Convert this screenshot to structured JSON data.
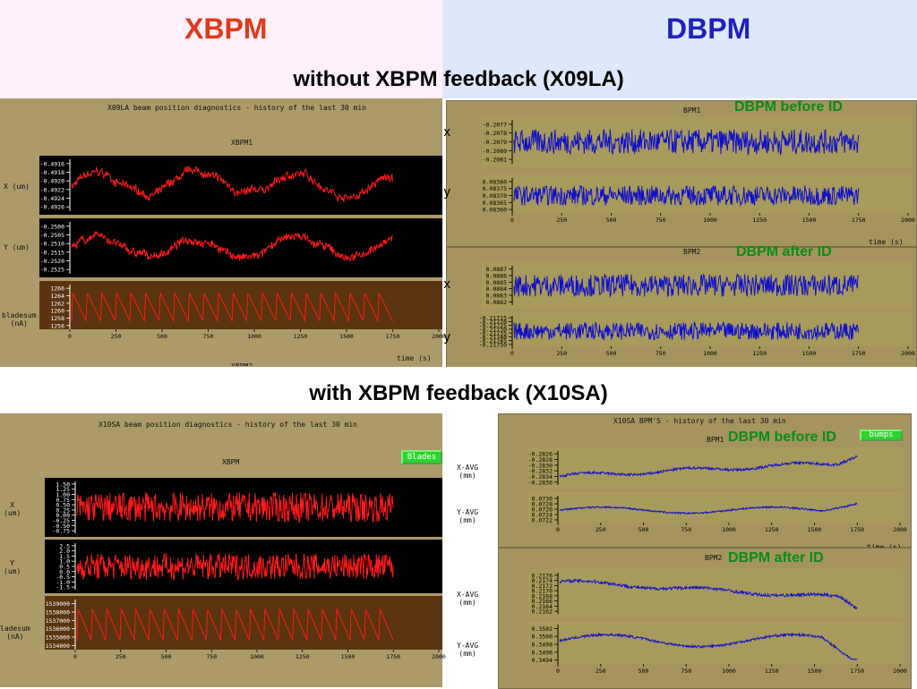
{
  "header": {
    "left_title": "XBPM",
    "right_title": "DBPM",
    "left_color": "#e03a1a",
    "right_color": "#2020c0"
  },
  "section1": {
    "title": "without XBPM feedback (X09LA)",
    "xbpm_title": "X09LA beam position diagnostics - history of the last 30 min",
    "xbpm_name": "XBPM1",
    "footer_cut": "XBPM2",
    "dbpm_before_label": "DBPM before ID",
    "dbpm_after_label": "DBPM after ID",
    "bpm1_name": "BPM1",
    "bpm2_name": "BPM2",
    "x_letter": "x",
    "y_letter": "y"
  },
  "section2": {
    "title": "with XBPM feedback (X10SA)",
    "xbpm_title": "X10SA beam position diagnostics - history of the last 30 min",
    "xbpm_name": "XBPM",
    "blades_button": "Blades",
    "dbpm_title": "X10SA   BPM'S - history of the last 30 min",
    "bumps_button": "bumps",
    "dbpm_before_label": "DBPM before ID",
    "dbpm_after_label": "DBPM after ID",
    "bpm1_name": "BPM1",
    "bpm2_name": "BPM2"
  },
  "colors": {
    "xbpm_trace": "#ff1a1a",
    "dbpm_trace": "#1010c8",
    "plot_bg_dark": "#000000",
    "plot_bg_brown": "#5a3410",
    "plot_bg_olive": "#a89a5c"
  },
  "chart_data": [
    {
      "id": "s1_xbpm_x",
      "type": "line",
      "xlabel": "",
      "ylabel": "X (um)",
      "xlim": [
        0,
        2000
      ],
      "ylim": [
        -0.4927,
        -0.4914
      ],
      "yticks": [
        "-0.4916",
        "-0.4918",
        "-0.4920",
        "-0.4922",
        "-0.4924",
        "-0.4926"
      ],
      "series": [
        {
          "x_end": 1750,
          "shape": "noisy-wander",
          "values_range": [
            -0.4925,
            -0.4916
          ]
        }
      ]
    },
    {
      "id": "s1_xbpm_y",
      "type": "line",
      "ylabel": "Y (um)",
      "xlim": [
        0,
        2000
      ],
      "ylim": [
        -0.2527,
        -0.2497
      ],
      "yticks": [
        "-0.2500",
        "-0.2505",
        "-0.2510",
        "-0.2515",
        "-0.2520",
        "-0.2525"
      ],
      "series": [
        {
          "x_end": 1750,
          "shape": "noisy-wander",
          "values_range": [
            -0.2522,
            -0.2503
          ]
        }
      ]
    },
    {
      "id": "s1_xbpm_blade",
      "type": "line",
      "ylabel": "bladesum (nA)",
      "xlabel": "time (s)",
      "xlim": [
        0,
        2000
      ],
      "ylim": [
        1255,
        1267
      ],
      "yticks": [
        "1266",
        "1264",
        "1262",
        "1260",
        "1258",
        "1256"
      ],
      "xticks": [
        "0",
        "250",
        "500",
        "750",
        "1000",
        "1250",
        "1500",
        "1750",
        "2000"
      ],
      "series": [
        {
          "x_end": 1750,
          "shape": "sawtooth",
          "teeth": 22,
          "values_range": [
            1256.5,
            1265.5
          ]
        }
      ]
    },
    {
      "id": "s1_bpm1_x",
      "type": "line",
      "ylabel": "x",
      "xlim": [
        0,
        2000
      ],
      "yticks": [
        "-0.2077",
        "-0.2078",
        "-0.2079",
        "-0.2080",
        "-0.2081"
      ],
      "series": [
        {
          "x_end": 1750,
          "shape": "noise",
          "values_range": [
            -0.208,
            -0.2078
          ]
        }
      ]
    },
    {
      "id": "s1_bpm1_y",
      "type": "line",
      "ylabel": "y",
      "xlabel": "time (s)",
      "xlim": [
        0,
        2000
      ],
      "yticks": [
        "0.08380",
        "0.08375",
        "0.08370",
        "0.08365",
        "0.08360"
      ],
      "xticks": [
        "0",
        "250",
        "500",
        "750",
        "1000",
        "1250",
        "1500",
        "1750",
        "2000"
      ],
      "series": [
        {
          "x_end": 1750,
          "shape": "noise",
          "values_range": [
            0.08365,
            0.08378
          ]
        }
      ]
    },
    {
      "id": "s1_bpm2_x",
      "type": "line",
      "ylabel": "x",
      "xlim": [
        0,
        2000
      ],
      "yticks": [
        "0.0887",
        "0.0886",
        "0.0885",
        "0.0884",
        "0.0883",
        "0.0882"
      ],
      "series": [
        {
          "x_end": 1750,
          "shape": "noise",
          "values_range": [
            0.0883,
            0.0886
          ]
        }
      ]
    },
    {
      "id": "s1_bpm2_y",
      "type": "line",
      "ylabel": "y",
      "xlim": [
        0,
        2000
      ],
      "yticks": [
        "-0.21715",
        "-0.21720",
        "-0.21725",
        "-0.21730",
        "-0.21735",
        "-0.21740",
        "-0.21745",
        "-0.21750"
      ],
      "xticks": [
        "0",
        "250",
        "500",
        "750",
        "1000",
        "1250",
        "1500",
        "1750",
        "2000"
      ],
      "series": [
        {
          "x_end": 1750,
          "shape": "noise",
          "values_range": [
            -0.2174,
            -0.21725
          ]
        }
      ]
    },
    {
      "id": "s2_xbpm_x",
      "type": "line",
      "ylabel": "X (um)",
      "xlim": [
        0,
        2000
      ],
      "yticks": [
        "1.50",
        "1.25",
        "1.00",
        "0.75",
        "0.50",
        "0.25",
        "0.00",
        "-0.25",
        "-0.50",
        "-0.75"
      ],
      "series": [
        {
          "x_end": 1750,
          "shape": "noise",
          "values_range": [
            -0.5,
            1.25
          ]
        }
      ]
    },
    {
      "id": "s2_xbpm_y",
      "type": "line",
      "ylabel": "Y (um)",
      "xlim": [
        0,
        2000
      ],
      "yticks": [
        "2.5",
        "2.0",
        "1.5",
        "1.0",
        "0.5",
        "0.0",
        "-0.5",
        "-1.0",
        "-1.5"
      ],
      "series": [
        {
          "x_end": 1750,
          "shape": "noise",
          "values_range": [
            -1.0,
            2.0
          ]
        }
      ]
    },
    {
      "id": "s2_xbpm_blade",
      "type": "line",
      "ylabel": "bladesum (nA)",
      "xlim": [
        0,
        2000
      ],
      "yticks": [
        "1539000",
        "1538000",
        "1537000",
        "1536000",
        "1535000",
        "1534000"
      ],
      "xticks": [
        "0",
        "250",
        "500",
        "750",
        "1000",
        "1250",
        "1500",
        "1750",
        "2000"
      ],
      "series": [
        {
          "x_end": 1750,
          "shape": "sawtooth",
          "teeth": 22,
          "values_range": [
            1534600,
            1538800
          ]
        }
      ]
    },
    {
      "id": "s2_bpm1_x",
      "type": "line",
      "ylabel": "X-AVG (mm)",
      "xlim": [
        0,
        2000
      ],
      "yticks": [
        "-0.2826",
        "-0.2828",
        "-0.2830",
        "-0.2832",
        "-0.2834",
        "-0.2836"
      ],
      "series": [
        {
          "x_end": 1750,
          "shape": "rising-drift",
          "values_range": [
            -0.2836,
            -0.2826
          ]
        }
      ]
    },
    {
      "id": "s2_bpm1_y",
      "type": "line",
      "ylabel": "Y-AVG (mm)",
      "xlabel": "time (s)",
      "xlim": [
        0,
        2000
      ],
      "yticks": [
        "0.0730",
        "0.0728",
        "0.0726",
        "0.0724",
        "0.0722"
      ],
      "xticks": [
        "0",
        "250",
        "500",
        "750",
        "1000",
        "1250",
        "1500",
        "1750",
        "2000"
      ],
      "series": [
        {
          "x_end": 1750,
          "shape": "wave-then-rise",
          "values_range": [
            0.0724,
            0.0731
          ]
        }
      ]
    },
    {
      "id": "s2_bpm2_x",
      "type": "line",
      "ylabel": "X-AVG (mm)",
      "xlim": [
        0,
        2000
      ],
      "yticks": [
        "0.2176",
        "0.2174",
        "0.2172",
        "0.2170",
        "0.2168",
        "0.2166",
        "0.2164",
        "0.2162"
      ],
      "series": [
        {
          "x_end": 1750,
          "shape": "falling-drift",
          "values_range": [
            0.2163,
            0.2175
          ]
        }
      ]
    },
    {
      "id": "s2_bpm2_y",
      "type": "line",
      "ylabel": "Y-AVG (mm)",
      "xlim": [
        0,
        2000
      ],
      "yticks": [
        "0.3502",
        "0.3500",
        "0.3498",
        "0.3496",
        "0.3494"
      ],
      "xticks": [
        "0",
        "250",
        "500",
        "750",
        "1000",
        "1250",
        "1500",
        "1750",
        "2000"
      ],
      "series": [
        {
          "x_end": 1750,
          "shape": "wave-then-drop",
          "values_range": [
            0.3494,
            0.3501
          ]
        }
      ]
    }
  ],
  "shared_labels": {
    "time_label": "time (s)",
    "x_um": "X (um)",
    "y_um": "Y (um)",
    "x_um_short": "X\n(um)",
    "y_um_short": "Y\n(um)",
    "bladesum": "bladesum\n(nA)",
    "bladesum_cut": "ladesum\n(nA)",
    "xavg": "X-AVG\n(mm)",
    "yavg": "Y-AVG\n(mm)"
  }
}
